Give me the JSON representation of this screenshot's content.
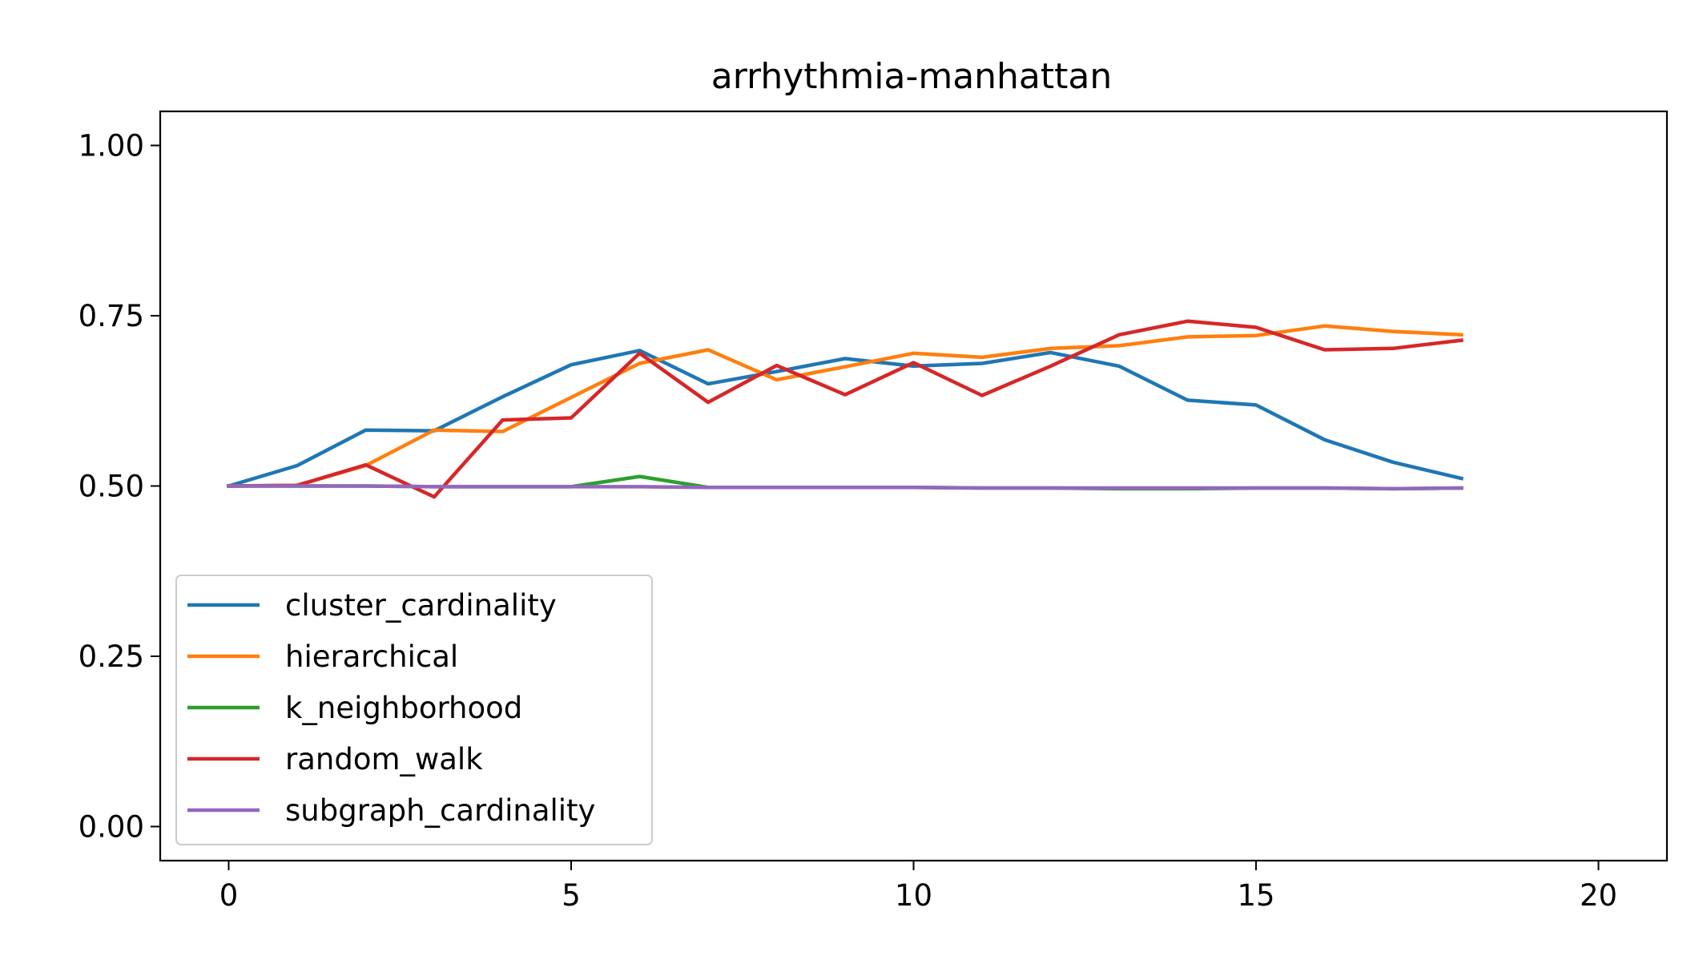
{
  "chart_data": {
    "type": "line",
    "title": "arrhythmia-manhattan",
    "xlabel": "",
    "ylabel": "",
    "xlim": [
      -1,
      21
    ],
    "ylim": [
      -0.05,
      1.05
    ],
    "xticks": [
      0,
      5,
      10,
      15,
      20
    ],
    "yticks": [
      0.0,
      0.25,
      0.5,
      0.75,
      1.0
    ],
    "xtick_labels": [
      "0",
      "5",
      "10",
      "15",
      "20"
    ],
    "ytick_labels": [
      "0.00",
      "0.25",
      "0.50",
      "0.75",
      "1.00"
    ],
    "grid": false,
    "legend_position": "lower-left",
    "x": [
      0,
      1,
      2,
      3,
      4,
      5,
      6,
      7,
      8,
      9,
      10,
      11,
      12,
      13,
      14,
      15,
      16,
      17,
      18
    ],
    "series": [
      {
        "name": "cluster_cardinality",
        "color": "#1f77b4",
        "values": [
          0.5,
          0.53,
          0.582,
          0.581,
          0.631,
          0.678,
          0.699,
          0.65,
          0.668,
          0.687,
          0.676,
          0.68,
          0.696,
          0.676,
          0.626,
          0.619,
          0.568,
          0.535,
          0.511
        ]
      },
      {
        "name": "hierarchical",
        "color": "#ff7f0e",
        "values": [
          0.5,
          0.501,
          0.53,
          0.582,
          0.58,
          0.63,
          0.68,
          0.7,
          0.656,
          0.675,
          0.695,
          0.689,
          0.702,
          0.706,
          0.719,
          0.721,
          0.735,
          0.727,
          0.722
        ]
      },
      {
        "name": "k_neighborhood",
        "color": "#2ca02c",
        "values": [
          0.5,
          0.5,
          0.5,
          0.499,
          0.499,
          0.499,
          0.514,
          0.498,
          0.498,
          0.498,
          0.498,
          0.497,
          0.497,
          0.496,
          0.496,
          0.497,
          0.497,
          0.496,
          0.497
        ]
      },
      {
        "name": "random_walk",
        "color": "#d62728",
        "values": [
          0.5,
          0.501,
          0.531,
          0.484,
          0.597,
          0.6,
          0.695,
          0.623,
          0.677,
          0.634,
          0.681,
          0.633,
          0.676,
          0.722,
          0.742,
          0.733,
          0.7,
          0.702,
          0.714
        ]
      },
      {
        "name": "subgraph_cardinality",
        "color": "#9467bd",
        "values": [
          0.5,
          0.5,
          0.5,
          0.499,
          0.499,
          0.499,
          0.499,
          0.498,
          0.498,
          0.498,
          0.498,
          0.497,
          0.497,
          0.497,
          0.497,
          0.497,
          0.497,
          0.496,
          0.497
        ]
      }
    ]
  }
}
